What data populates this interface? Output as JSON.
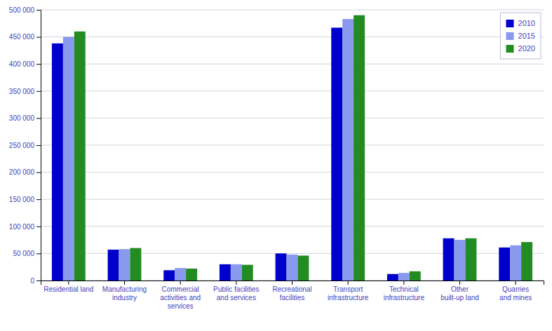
{
  "chart_data": {
    "type": "bar",
    "categories": [
      "Residential land",
      "Manufacturing\nindustry",
      "Commercial\nactivities and\nservices",
      "Public facilities\nand services",
      "Recreational\nfacilities",
      "Transport\ninfrastructure",
      "Technical\ninfrastructure",
      "Other\nbuilt-up land",
      "Quarries\nand mines"
    ],
    "series": [
      {
        "name": "2010",
        "color": "#0000CC",
        "values": [
          438000,
          57000,
          19000,
          30000,
          50000,
          467000,
          12000,
          78000,
          61000
        ]
      },
      {
        "name": "2015",
        "color": "#8899EE",
        "values": [
          450000,
          58000,
          23000,
          30000,
          48000,
          483000,
          14000,
          75000,
          65000
        ]
      },
      {
        "name": "2020",
        "color": "#228B22",
        "values": [
          460000,
          60000,
          22000,
          29000,
          46000,
          490000,
          17000,
          78000,
          71000
        ]
      }
    ],
    "ylim": [
      0,
      500000
    ],
    "yticks": [
      0,
      {
        "value": 50000,
        "label": "50 000"
      },
      {
        "value": 100000,
        "label": "100 000"
      },
      {
        "value": 150000,
        "label": "150 000"
      },
      {
        "value": 200000,
        "label": "200 000"
      },
      {
        "value": 250000,
        "label": "250 000"
      },
      {
        "value": 300000,
        "label": "300 000"
      },
      {
        "value": 350000,
        "label": "350 000"
      },
      {
        "value": 400000,
        "label": "400 000"
      },
      {
        "value": 450000,
        "label": "450 000"
      },
      {
        "value": 500000,
        "label": "500 000"
      }
    ],
    "grid": true,
    "legend": "upper right"
  }
}
